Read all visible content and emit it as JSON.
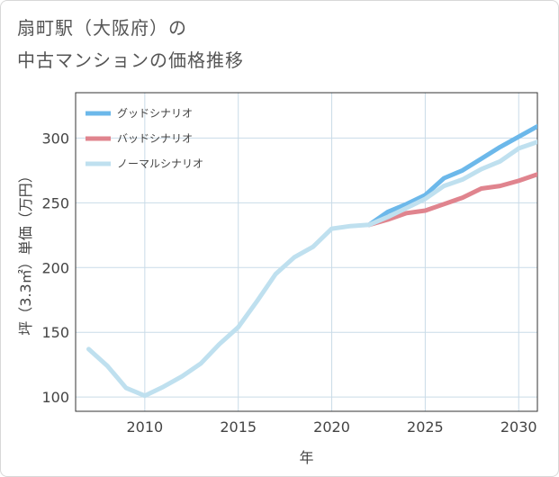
{
  "title_line1": "扇町駅（大阪府）の",
  "title_line2": "中古マンションの価格推移",
  "chart_data": {
    "type": "line",
    "xlabel": "年",
    "ylabel": "坪（3.3㎡）単価（万円）",
    "xlim": [
      2006.3,
      2031
    ],
    "ylim": [
      89,
      335
    ],
    "xticks": [
      2010,
      2015,
      2020,
      2025,
      2030
    ],
    "yticks": [
      100,
      150,
      200,
      250,
      300
    ],
    "grid": true,
    "legend_position": "top-left",
    "series": [
      {
        "name": "グッドシナリオ",
        "color": "#6cb8ea",
        "x": [
          2022,
          2023,
          2024,
          2025,
          2026,
          2027,
          2028,
          2029,
          2030,
          2031
        ],
        "y": [
          233,
          243,
          249,
          256,
          269,
          275,
          284,
          293,
          301,
          309
        ]
      },
      {
        "name": "バッドシナリオ",
        "color": "#e0848e",
        "x": [
          2022,
          2023,
          2024,
          2025,
          2026,
          2027,
          2028,
          2029,
          2030,
          2031
        ],
        "y": [
          233,
          237,
          242,
          244,
          249,
          254,
          261,
          263,
          267,
          272
        ]
      },
      {
        "name": "ノーマルシナリオ",
        "color": "#bfe0ef",
        "x": [
          2007,
          2008,
          2009,
          2010,
          2011,
          2012,
          2013,
          2014,
          2015,
          2016,
          2017,
          2018,
          2019,
          2020,
          2021,
          2022,
          2023,
          2024,
          2025,
          2026,
          2027,
          2028,
          2029,
          2030,
          2031
        ],
        "y": [
          137,
          124,
          107,
          101,
          108,
          116,
          126,
          141,
          154,
          174,
          195,
          208,
          216,
          230,
          232,
          233,
          239,
          246,
          253,
          263,
          268,
          276,
          282,
          292,
          297
        ]
      }
    ]
  }
}
